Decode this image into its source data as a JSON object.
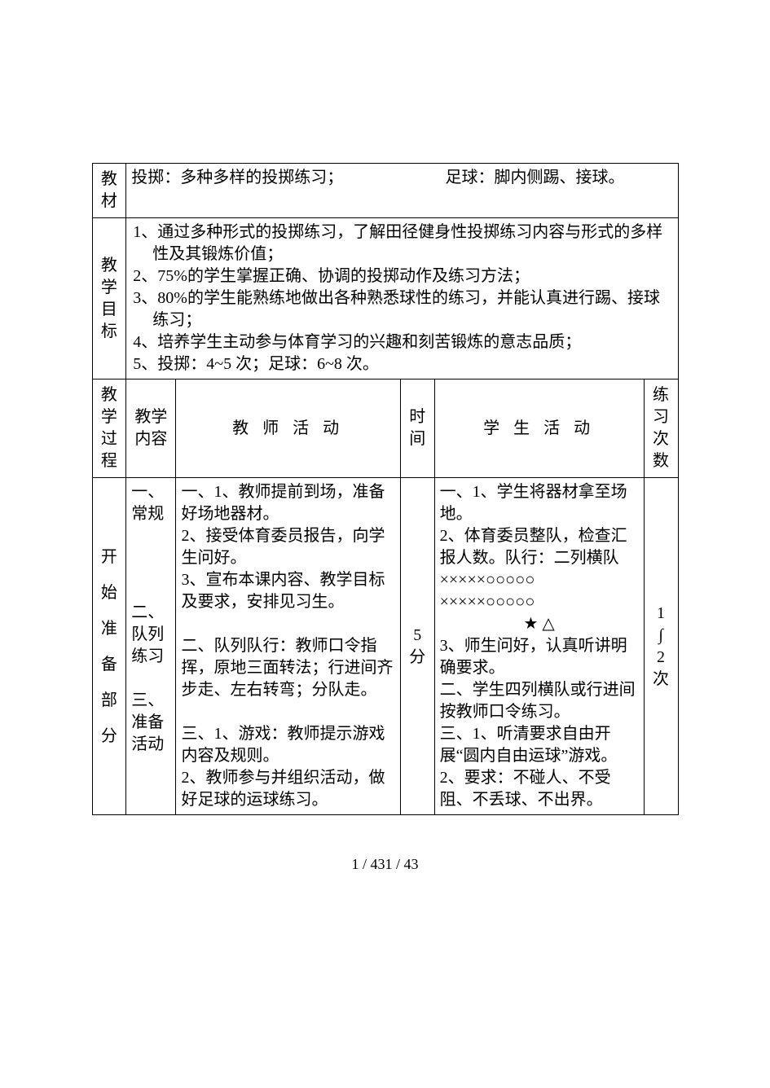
{
  "row_labels": {
    "materials": "教材",
    "goals": "教学目标",
    "process": "教学过程",
    "stage1": "开始准备部分"
  },
  "materials": {
    "left": "投掷：多种多样的投掷练习；",
    "right": "足球：脚内侧踢、接球。"
  },
  "goals": [
    "1、通过多种形式的投掷练习，了解田径健身性投掷练习内容与形式的多样性及其锻炼价值；",
    "2、75%的学生掌握正确、协调的投掷动作及练习方法；",
    "3、80%的学生能熟练地做出各种熟悉球性的练习，并能认真进行踢、接球练习；",
    "4、培养学生主动参与体育学习的兴趣和刻苦锻炼的意志品质；",
    "5、投掷：4~5 次；足球：6~8 次。"
  ],
  "headers": {
    "content": "教学内容",
    "teacher": "教  师  活  动",
    "time": "时间",
    "student": "学  生  活  动",
    "count": "练习次数"
  },
  "stage1": {
    "content_items": [
      "一、常规",
      "",
      "",
      "二、队列练习",
      "",
      "三、准备活动"
    ],
    "teacher_lines": [
      "一、1、教师提前到场，准备好场地器材。",
      "2、接受体育委员报告，向学生问好。",
      "3、宣布本课内容、教学目标及要求，安排见习生。",
      "",
      "二、队列队行：教师口令指挥，原地三面转法；行进间齐步走、左右转弯；分队走。",
      "",
      "三、1、游戏：教师提示游戏内容及规则。",
      "2、教师参与并组织活动，做好足球的运球练习。"
    ],
    "time": "5分",
    "student_lines": [
      "一、1、学生将器材拿至场地。",
      "2、体育委员整队，检查汇报人数。队行：二列横队",
      "×××××○○○○○",
      "×××××○○○○○",
      "        ★    △",
      "3、师生问好，认真听讲明确要求。",
      "二、学生四列横队或行进间按教师口令练习。",
      "三、1、听清要求自由开展“圆内自由运球”游戏。",
      "2、要求：不碰人、不受阻、不丢球、不出界。"
    ],
    "count": "1∫2次"
  },
  "footer": "1  /  431  /  43"
}
